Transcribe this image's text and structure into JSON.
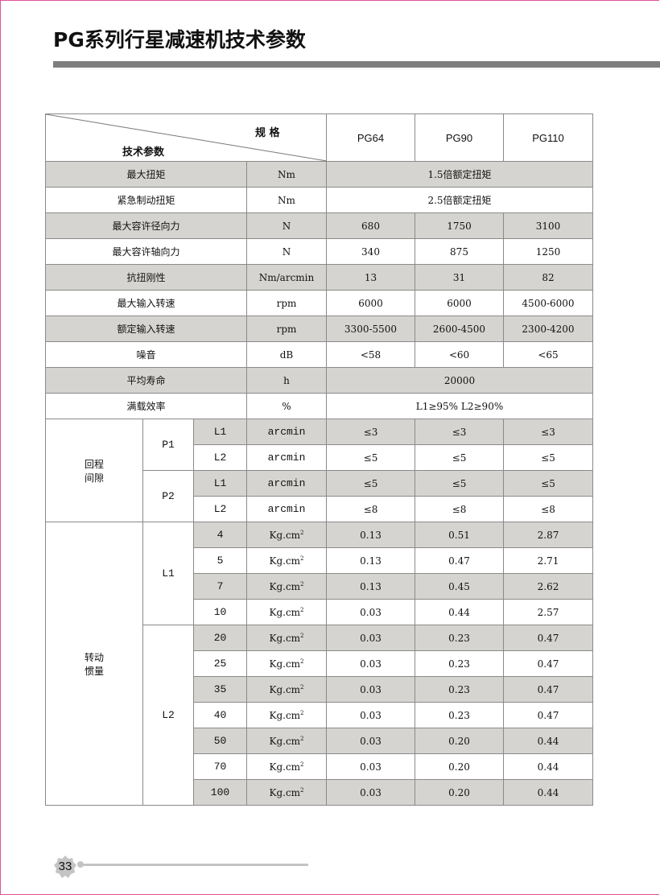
{
  "title": "PG系列行星减速机技术参数",
  "header": {
    "spec_label": "规 格",
    "param_label": "技术参数",
    "models": [
      "PG64",
      "PG90",
      "PG110"
    ]
  },
  "params": [
    {
      "name": "最大扭矩",
      "unit": "Nm",
      "merged": "1.5倍额定扭矩"
    },
    {
      "name": "紧急制动扭矩",
      "unit": "Nm",
      "merged": "2.5倍额定扭矩"
    },
    {
      "name": "最大容许径向力",
      "unit": "N",
      "values": [
        "680",
        "1750",
        "3100"
      ]
    },
    {
      "name": "最大容许轴向力",
      "unit": "N",
      "values": [
        "340",
        "875",
        "1250"
      ]
    },
    {
      "name": "抗扭刚性",
      "unit": "Nm/arcmin",
      "values": [
        "13",
        "31",
        "82"
      ]
    },
    {
      "name": "最大输入转速",
      "unit": "rpm",
      "values": [
        "6000",
        "6000",
        "4500-6000"
      ]
    },
    {
      "name": "额定输入转速",
      "unit": "rpm",
      "values": [
        "3300-5500",
        "2600-4500",
        "2300-4200"
      ]
    },
    {
      "name": "噪音",
      "unit": "dB",
      "values": [
        "<58",
        "<60",
        "<65"
      ]
    },
    {
      "name": "平均寿命",
      "unit": "h",
      "merged": "20000"
    },
    {
      "name": "满载效率",
      "unit": "%",
      "merged": "L1≥95%   L2≥90%"
    }
  ],
  "backlash": {
    "label": "回程\n间隙",
    "groups": [
      {
        "name": "P1",
        "rows": [
          {
            "stage": "L1",
            "unit": "arcmin",
            "values": [
              "≤3",
              "≤3",
              "≤3"
            ]
          },
          {
            "stage": "L2",
            "unit": "arcmin",
            "values": [
              "≤5",
              "≤5",
              "≤5"
            ]
          }
        ]
      },
      {
        "name": "P2",
        "rows": [
          {
            "stage": "L1",
            "unit": "arcmin",
            "values": [
              "≤5",
              "≤5",
              "≤5"
            ]
          },
          {
            "stage": "L2",
            "unit": "arcmin",
            "values": [
              "≤8",
              "≤8",
              "≤8"
            ]
          }
        ]
      }
    ]
  },
  "inertia": {
    "label": "转动\n惯量",
    "unit": "Kg.cm",
    "unit_sup": "2",
    "groups": [
      {
        "name": "L1",
        "rows": [
          {
            "ratio": "4",
            "values": [
              "0.13",
              "0.51",
              "2.87"
            ]
          },
          {
            "ratio": "5",
            "values": [
              "0.13",
              "0.47",
              "2.71"
            ]
          },
          {
            "ratio": "7",
            "values": [
              "0.13",
              "0.45",
              "2.62"
            ]
          },
          {
            "ratio": "10",
            "values": [
              "0.03",
              "0.44",
              "2.57"
            ]
          }
        ]
      },
      {
        "name": "L2",
        "rows": [
          {
            "ratio": "20",
            "values": [
              "0.03",
              "0.23",
              "0.47"
            ]
          },
          {
            "ratio": "25",
            "values": [
              "0.03",
              "0.23",
              "0.47"
            ]
          },
          {
            "ratio": "35",
            "values": [
              "0.03",
              "0.23",
              "0.47"
            ]
          },
          {
            "ratio": "40",
            "values": [
              "0.03",
              "0.23",
              "0.47"
            ]
          },
          {
            "ratio": "50",
            "values": [
              "0.03",
              "0.20",
              "0.44"
            ]
          },
          {
            "ratio": "70",
            "values": [
              "0.03",
              "0.20",
              "0.44"
            ]
          },
          {
            "ratio": "100",
            "values": [
              "0.03",
              "0.20",
              "0.44"
            ]
          }
        ]
      }
    ]
  },
  "footer": {
    "page_number": "33"
  },
  "colors": {
    "shade": "#d6d4d0",
    "border": "#e0539a",
    "bar": "#7e7e80"
  }
}
